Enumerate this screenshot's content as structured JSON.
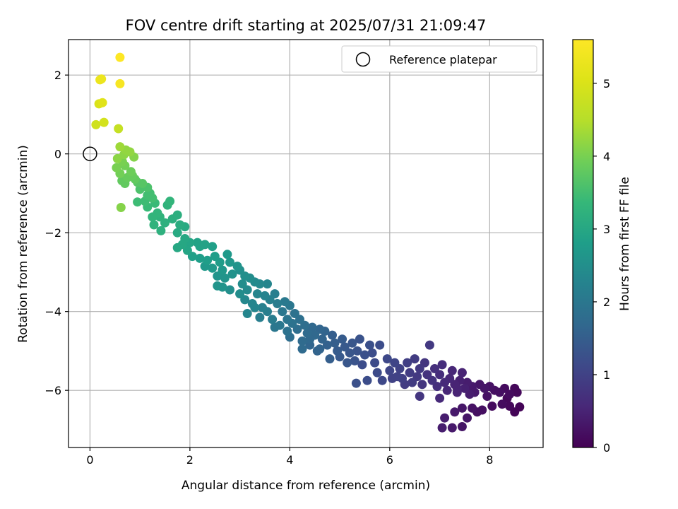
{
  "chart_data": {
    "type": "scatter",
    "title": "FOV centre drift starting at 2025/07/31 21:09:47",
    "xlabel": "Angular distance from reference (arcmin)",
    "ylabel": "Rotation from reference (arcmin)",
    "xlim": [
      -0.43,
      9.07
    ],
    "ylim": [
      -7.45,
      2.9
    ],
    "xticks": [
      0,
      2,
      4,
      6,
      8
    ],
    "yticks": [
      -6,
      -4,
      -2,
      0,
      2
    ],
    "grid": true,
    "legend": {
      "position": "top-right",
      "entries": [
        "Reference platepar"
      ]
    },
    "reference_point": {
      "x": 0,
      "y": 0,
      "label": "Reference platepar"
    },
    "colorbar": {
      "label": "Hours from first FF file",
      "colormap": "viridis",
      "range": [
        0,
        5.6
      ],
      "ticks": [
        0,
        1,
        2,
        3,
        4,
        5
      ]
    },
    "points": [
      [
        0.6,
        2.45,
        5.6
      ],
      [
        0.6,
        1.78,
        5.5
      ],
      [
        0.23,
        1.9,
        5.3
      ],
      [
        0.2,
        1.88,
        5.3
      ],
      [
        0.25,
        1.3,
        5.1
      ],
      [
        0.18,
        1.27,
        5.0
      ],
      [
        0.28,
        0.8,
        4.9
      ],
      [
        0.12,
        0.74,
        4.85
      ],
      [
        0.57,
        0.64,
        4.7
      ],
      [
        0.6,
        0.18,
        4.3
      ],
      [
        0.72,
        0.1,
        4.2
      ],
      [
        0.88,
        -0.08,
        4.1
      ],
      [
        0.55,
        -0.12,
        4.15
      ],
      [
        0.65,
        -0.2,
        4.0
      ],
      [
        0.53,
        -0.35,
        4.0
      ],
      [
        0.7,
        -0.3,
        3.95
      ],
      [
        0.82,
        -0.45,
        3.9
      ],
      [
        0.6,
        -0.5,
        3.95
      ],
      [
        0.75,
        -0.6,
        3.85
      ],
      [
        0.64,
        -0.68,
        3.8
      ],
      [
        0.9,
        -0.64,
        3.8
      ],
      [
        0.95,
        -0.72,
        3.7
      ],
      [
        1.05,
        -0.75,
        3.7
      ],
      [
        1.0,
        -0.9,
        3.6
      ],
      [
        1.15,
        -0.85,
        3.6
      ],
      [
        1.2,
        -1.0,
        3.5
      ],
      [
        1.25,
        -1.12,
        3.5
      ],
      [
        1.1,
        -1.2,
        3.45
      ],
      [
        0.95,
        -1.22,
        3.45
      ],
      [
        1.3,
        -1.25,
        3.4
      ],
      [
        1.15,
        -1.35,
        3.4
      ],
      [
        0.62,
        -1.36,
        4.1
      ],
      [
        1.35,
        -1.5,
        3.3
      ],
      [
        1.6,
        -1.2,
        3.3
      ],
      [
        1.55,
        -1.3,
        3.25
      ],
      [
        1.25,
        -1.6,
        3.3
      ],
      [
        1.28,
        -1.8,
        3.25
      ],
      [
        1.42,
        -1.95,
        3.2
      ],
      [
        1.65,
        -1.65,
        3.15
      ],
      [
        1.75,
        -1.55,
        3.15
      ],
      [
        1.8,
        -1.8,
        3.1
      ],
      [
        1.9,
        -1.85,
        3.05
      ],
      [
        1.75,
        -2.0,
        3.05
      ],
      [
        1.9,
        -2.15,
        3.0
      ],
      [
        1.85,
        -2.3,
        3.0
      ],
      [
        1.75,
        -2.38,
        3.0
      ],
      [
        2.0,
        -2.25,
        2.95
      ],
      [
        2.15,
        -2.25,
        2.9
      ],
      [
        2.3,
        -2.3,
        2.9
      ],
      [
        2.45,
        -2.35,
        2.85
      ],
      [
        2.05,
        -2.6,
        2.85
      ],
      [
        2.2,
        -2.65,
        2.8
      ],
      [
        2.35,
        -2.7,
        2.8
      ],
      [
        2.5,
        -2.6,
        2.8
      ],
      [
        2.6,
        -2.75,
        2.75
      ],
      [
        2.3,
        -2.85,
        2.7
      ],
      [
        2.45,
        -2.9,
        2.7
      ],
      [
        2.75,
        -2.55,
        2.7
      ],
      [
        2.8,
        -2.75,
        2.65
      ],
      [
        2.65,
        -2.95,
        2.65
      ],
      [
        2.55,
        -3.1,
        2.6
      ],
      [
        2.95,
        -2.85,
        2.6
      ],
      [
        2.85,
        -3.05,
        2.55
      ],
      [
        2.55,
        -3.35,
        2.6
      ],
      [
        2.65,
        -3.38,
        2.6
      ],
      [
        3.0,
        -2.95,
        2.5
      ],
      [
        3.1,
        -3.1,
        2.5
      ],
      [
        3.05,
        -3.3,
        2.45
      ],
      [
        3.2,
        -3.15,
        2.45
      ],
      [
        2.8,
        -3.45,
        2.5
      ],
      [
        3.3,
        -3.25,
        2.4
      ],
      [
        3.15,
        -3.45,
        2.4
      ],
      [
        3.4,
        -3.3,
        2.35
      ],
      [
        3.35,
        -3.55,
        2.3
      ],
      [
        3.1,
        -3.7,
        2.35
      ],
      [
        3.25,
        -3.8,
        2.3
      ],
      [
        3.15,
        -4.05,
        2.3
      ],
      [
        3.5,
        -3.6,
        2.25
      ],
      [
        3.45,
        -3.9,
        2.2
      ],
      [
        3.6,
        -3.7,
        2.2
      ],
      [
        3.7,
        -3.55,
        2.15
      ],
      [
        3.75,
        -3.8,
        2.1
      ],
      [
        3.55,
        -4.0,
        2.15
      ],
      [
        3.4,
        -4.15,
        2.15
      ],
      [
        3.65,
        -4.2,
        2.1
      ],
      [
        3.9,
        -3.75,
        2.05
      ],
      [
        3.85,
        -4.0,
        2.0
      ],
      [
        4.0,
        -3.85,
        2.0
      ],
      [
        3.95,
        -4.2,
        1.95
      ],
      [
        3.7,
        -4.4,
        2.0
      ],
      [
        4.1,
        -4.05,
        1.9
      ],
      [
        4.05,
        -4.3,
        1.9
      ],
      [
        3.95,
        -4.5,
        1.9
      ],
      [
        4.2,
        -4.2,
        1.85
      ],
      [
        4.15,
        -4.45,
        1.8
      ],
      [
        4.3,
        -4.35,
        1.8
      ],
      [
        4.0,
        -4.65,
        1.8
      ],
      [
        4.35,
        -4.55,
        1.75
      ],
      [
        4.25,
        -4.75,
        1.75
      ],
      [
        4.45,
        -4.4,
        1.7
      ],
      [
        4.5,
        -4.6,
        1.7
      ],
      [
        4.6,
        -4.45,
        1.65
      ],
      [
        4.4,
        -4.85,
        1.65
      ],
      [
        4.65,
        -4.7,
        1.6
      ],
      [
        4.7,
        -4.5,
        1.6
      ],
      [
        4.75,
        -4.85,
        1.55
      ],
      [
        4.55,
        -5.0,
        1.6
      ],
      [
        4.85,
        -4.6,
        1.5
      ],
      [
        4.9,
        -4.8,
        1.5
      ],
      [
        4.95,
        -5.0,
        1.45
      ],
      [
        5.05,
        -4.7,
        1.45
      ],
      [
        5.1,
        -4.9,
        1.4
      ],
      [
        5.0,
        -5.15,
        1.4
      ],
      [
        5.2,
        -5.05,
        1.35
      ],
      [
        5.25,
        -4.8,
        1.35
      ],
      [
        5.15,
        -5.3,
        1.35
      ],
      [
        5.35,
        -5.0,
        1.3
      ],
      [
        5.4,
        -4.7,
        1.3
      ],
      [
        5.3,
        -5.25,
        1.3
      ],
      [
        5.5,
        -5.1,
        1.25
      ],
      [
        5.6,
        -4.85,
        1.25
      ],
      [
        5.45,
        -5.35,
        1.2
      ],
      [
        5.33,
        -5.82,
        1.25
      ],
      [
        5.7,
        -5.3,
        1.15
      ],
      [
        5.75,
        -5.55,
        1.15
      ],
      [
        5.8,
        -4.85,
        1.2
      ],
      [
        5.95,
        -5.2,
        1.1
      ],
      [
        5.85,
        -5.75,
        1.1
      ],
      [
        6.0,
        -5.5,
        1.05
      ],
      [
        6.1,
        -5.3,
        1.05
      ],
      [
        6.05,
        -5.7,
        1.0
      ],
      [
        6.2,
        -5.45,
        1.0
      ],
      [
        6.25,
        -5.7,
        0.95
      ],
      [
        6.35,
        -5.3,
        0.95
      ],
      [
        6.4,
        -5.55,
        0.9
      ],
      [
        6.45,
        -5.8,
        0.9
      ],
      [
        6.5,
        -5.2,
        0.9
      ],
      [
        6.55,
        -5.65,
        0.85
      ],
      [
        6.6,
        -5.45,
        0.85
      ],
      [
        6.65,
        -5.85,
        0.8
      ],
      [
        6.7,
        -5.3,
        0.8
      ],
      [
        6.75,
        -5.6,
        0.75
      ],
      [
        6.8,
        -4.85,
        0.85
      ],
      [
        6.85,
        -5.75,
        0.75
      ],
      [
        6.9,
        -5.45,
        0.7
      ],
      [
        6.95,
        -5.9,
        0.7
      ],
      [
        7.0,
        -5.6,
        0.65
      ],
      [
        7.05,
        -5.35,
        0.65
      ],
      [
        7.1,
        -5.8,
        0.6
      ],
      [
        7.0,
        -6.2,
        0.6
      ],
      [
        7.15,
        -6.0,
        0.55
      ],
      [
        7.2,
        -5.7,
        0.55
      ],
      [
        7.25,
        -5.5,
        0.55
      ],
      [
        7.3,
        -5.85,
        0.5
      ],
      [
        7.35,
        -6.05,
        0.5
      ],
      [
        7.4,
        -5.75,
        0.45
      ],
      [
        7.45,
        -5.55,
        0.5
      ],
      [
        7.5,
        -5.95,
        0.45
      ],
      [
        7.55,
        -5.8,
        0.4
      ],
      [
        7.6,
        -6.1,
        0.4
      ],
      [
        7.65,
        -5.9,
        0.35
      ],
      [
        7.7,
        -6.05,
        0.35
      ],
      [
        7.8,
        -5.85,
        0.3
      ],
      [
        7.9,
        -5.95,
        0.3
      ],
      [
        8.0,
        -5.9,
        0.25
      ],
      [
        8.1,
        -6.0,
        0.2
      ],
      [
        8.2,
        -6.05,
        0.2
      ],
      [
        8.3,
        -5.95,
        0.15
      ],
      [
        8.4,
        -6.1,
        0.15
      ],
      [
        8.5,
        -5.95,
        0.1
      ],
      [
        8.55,
        -6.05,
        0.1
      ],
      [
        8.6,
        -6.42,
        0.05
      ],
      [
        8.4,
        -6.4,
        0.1
      ],
      [
        8.25,
        -6.35,
        0.15
      ],
      [
        8.5,
        -6.55,
        0.05
      ],
      [
        8.05,
        -6.4,
        0.15
      ],
      [
        7.85,
        -6.5,
        0.2
      ],
      [
        7.65,
        -6.45,
        0.25
      ],
      [
        7.75,
        -6.55,
        0.2
      ],
      [
        7.45,
        -6.45,
        0.3
      ],
      [
        7.3,
        -6.55,
        0.35
      ],
      [
        7.55,
        -6.7,
        0.3
      ],
      [
        7.1,
        -6.7,
        0.4
      ],
      [
        7.25,
        -6.95,
        0.35
      ],
      [
        7.45,
        -6.92,
        0.3
      ],
      [
        7.05,
        -6.95,
        0.4
      ],
      [
        6.6,
        -6.15,
        0.8
      ],
      [
        6.3,
        -5.85,
        0.9
      ],
      [
        5.55,
        -5.75,
        1.2
      ],
      [
        4.6,
        -4.95,
        1.6
      ],
      [
        4.4,
        -4.7,
        1.7
      ],
      [
        4.25,
        -4.95,
        1.75
      ],
      [
        3.8,
        -4.35,
        2.0
      ],
      [
        3.3,
        -3.9,
        2.3
      ],
      [
        3.0,
        -3.55,
        2.45
      ],
      [
        2.2,
        -2.35,
        2.9
      ],
      [
        1.95,
        -2.45,
        2.95
      ],
      [
        1.4,
        -1.6,
        3.25
      ],
      [
        1.15,
        -1.05,
        3.5
      ],
      [
        0.85,
        -0.55,
        3.85
      ],
      [
        0.68,
        -0.02,
        4.15
      ],
      [
        0.8,
        0.05,
        4.2
      ],
      [
        0.7,
        -0.75,
        3.8
      ],
      [
        1.5,
        -1.75,
        3.2
      ],
      [
        2.7,
        -3.15,
        2.6
      ],
      [
        3.55,
        -3.3,
        2.3
      ],
      [
        4.8,
        -5.2,
        1.5
      ],
      [
        5.65,
        -5.05,
        1.2
      ],
      [
        6.15,
        -5.65,
        1.0
      ],
      [
        7.35,
        -5.95,
        0.5
      ],
      [
        7.95,
        -6.15,
        0.25
      ],
      [
        8.35,
        -6.2,
        0.1
      ]
    ]
  }
}
